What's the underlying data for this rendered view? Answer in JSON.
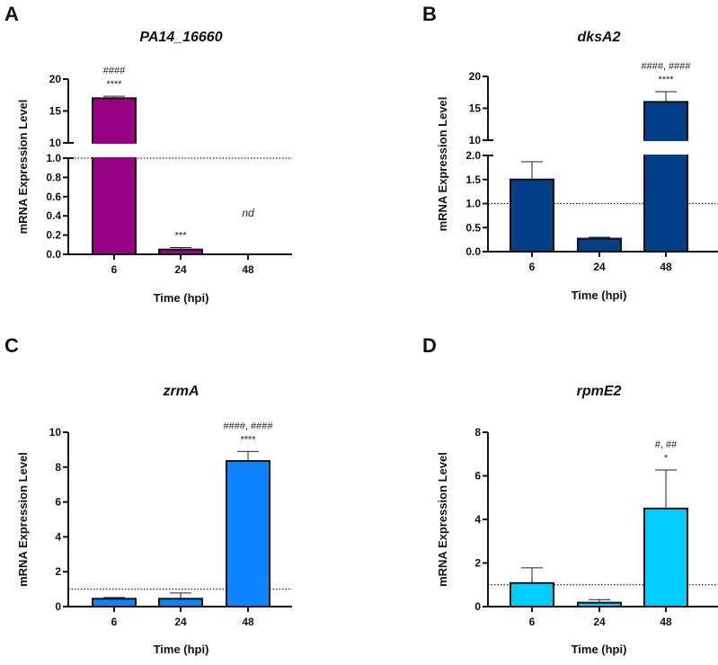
{
  "chart_data": [
    {
      "panel": "A",
      "type": "bar",
      "title": "PA14_16660",
      "xlabel": "Time (hpi)",
      "ylabel": "mRNA Expression Level",
      "categories": [
        "6",
        "24",
        "48"
      ],
      "values": [
        17.0,
        0.05,
        null
      ],
      "error_upper": [
        17.3,
        0.07,
        null
      ],
      "color": "#960082",
      "axis_break": true,
      "ylim_lower": [
        0,
        1.0
      ],
      "ylim_upper": [
        10,
        20
      ],
      "yticks_lower": [
        "0.0",
        "0.2",
        "0.4",
        "0.6",
        "0.8",
        "1.0"
      ],
      "yticks_lower_values": [
        0,
        0.2,
        0.4,
        0.6,
        0.8,
        1.0
      ],
      "yticks_upper": [
        "10",
        "15",
        "20"
      ],
      "yticks_upper_values": [
        10,
        15,
        20
      ],
      "reference_line": 1.0,
      "annotations": [
        {
          "category": "6",
          "stars": "****",
          "hashes": "####"
        },
        {
          "category": "24",
          "stars": "***",
          "hashes": ""
        },
        {
          "category": "48",
          "text": "nd"
        }
      ]
    },
    {
      "panel": "B",
      "type": "bar",
      "title": "dksA2",
      "xlabel": "Time (hpi)",
      "ylabel": "mRNA Expression Level",
      "categories": [
        "6",
        "24",
        "48"
      ],
      "values": [
        1.5,
        0.27,
        16.0
      ],
      "error_upper": [
        1.87,
        0.3,
        17.6
      ],
      "color": "#003F87",
      "axis_break": true,
      "ylim_lower": [
        0,
        2.0
      ],
      "ylim_upper": [
        10,
        20
      ],
      "yticks_lower": [
        "0.0",
        "0.5",
        "1.0",
        "1.5",
        "2.0"
      ],
      "yticks_lower_values": [
        0,
        0.5,
        1.0,
        1.5,
        2.0
      ],
      "yticks_upper": [
        "10",
        "15",
        "20"
      ],
      "yticks_upper_values": [
        10,
        15,
        20
      ],
      "reference_line": 1.0,
      "annotations": [
        {
          "category": "48",
          "stars": "****",
          "hashes": "####, ####"
        }
      ]
    },
    {
      "panel": "C",
      "type": "bar",
      "title": "zrmA",
      "xlabel": "Time (hpi)",
      "ylabel": "mRNA Expression Level",
      "categories": [
        "6",
        "24",
        "48"
      ],
      "values": [
        0.45,
        0.45,
        8.35
      ],
      "error_upper": [
        0.52,
        0.78,
        8.9
      ],
      "color": "#0A84FF",
      "axis_break": false,
      "ylim": [
        0,
        10
      ],
      "yticks": [
        "0",
        "2",
        "4",
        "6",
        "8",
        "10"
      ],
      "yticks_values": [
        0,
        2,
        4,
        6,
        8,
        10
      ],
      "reference_line": 1.0,
      "annotations": [
        {
          "category": "48",
          "stars": "****",
          "hashes": "####, ####"
        }
      ]
    },
    {
      "panel": "D",
      "type": "bar",
      "title": "rpmE2",
      "xlabel": "Time (hpi)",
      "ylabel": "mRNA Expression Level",
      "categories": [
        "6",
        "24",
        "48"
      ],
      "values": [
        1.08,
        0.18,
        4.5
      ],
      "error_upper": [
        1.78,
        0.32,
        6.27
      ],
      "color": "#00CCFF",
      "axis_break": false,
      "ylim": [
        0,
        8
      ],
      "yticks": [
        "0",
        "2",
        "4",
        "6",
        "8"
      ],
      "yticks_values": [
        0,
        2,
        4,
        6,
        8
      ],
      "reference_line": 1.0,
      "annotations": [
        {
          "category": "48",
          "stars": "*",
          "hashes": "#, ##"
        }
      ]
    }
  ]
}
